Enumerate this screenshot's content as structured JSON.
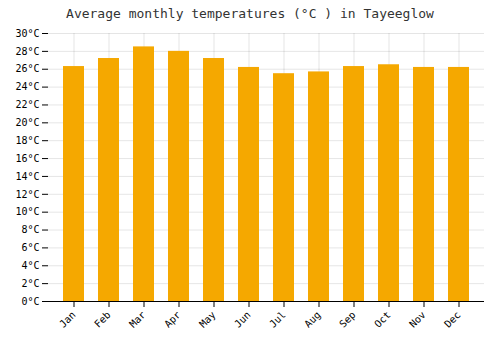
{
  "chart_data": {
    "type": "bar",
    "title": "Average monthly temperatures (°C ) in Tayeeglow",
    "categories": [
      "Jan",
      "Feb",
      "Mar",
      "Apr",
      "May",
      "Jun",
      "Jul",
      "Aug",
      "Sep",
      "Oct",
      "Nov",
      "Dec"
    ],
    "values": [
      26.3,
      27.2,
      28.5,
      28.0,
      27.2,
      26.2,
      25.5,
      25.7,
      26.3,
      26.5,
      26.2,
      26.2
    ],
    "color": "#F5A800",
    "ylim": [
      0,
      30
    ],
    "yticks": [
      {
        "value": 0,
        "label": "0°C"
      },
      {
        "value": 2,
        "label": "2°C"
      },
      {
        "value": 4,
        "label": "4°C"
      },
      {
        "value": 6,
        "label": "6°C"
      },
      {
        "value": 8,
        "label": "8°C"
      },
      {
        "value": 10,
        "label": "10°C"
      },
      {
        "value": 12,
        "label": "12°C"
      },
      {
        "value": 14,
        "label": "14°C"
      },
      {
        "value": 16,
        "label": "16°C"
      },
      {
        "value": 18,
        "label": "18°C"
      },
      {
        "value": 20,
        "label": "20°C"
      },
      {
        "value": 22,
        "label": "22°C"
      },
      {
        "value": 24,
        "label": "24°C"
      },
      {
        "value": 26,
        "label": "26°C"
      },
      {
        "value": 28,
        "label": "28°C"
      },
      {
        "value": 30,
        "label": "30°C"
      }
    ],
    "grid": true
  }
}
